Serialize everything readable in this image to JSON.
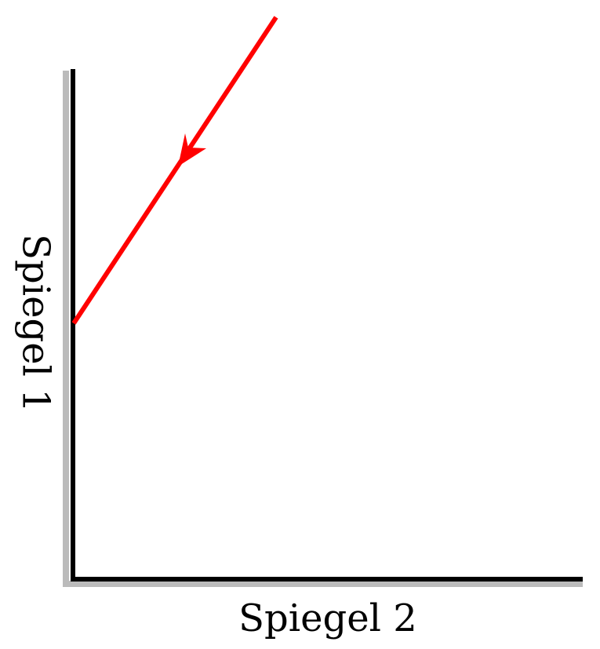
{
  "labels": {
    "mirror_1": "Spiegel 1",
    "mirror_2": "Spiegel 2"
  },
  "colors": {
    "ray": "#ff0000",
    "mirror": "#000000",
    "mirror_shadow": "#bbbbbb",
    "background": "#ffffff"
  }
}
